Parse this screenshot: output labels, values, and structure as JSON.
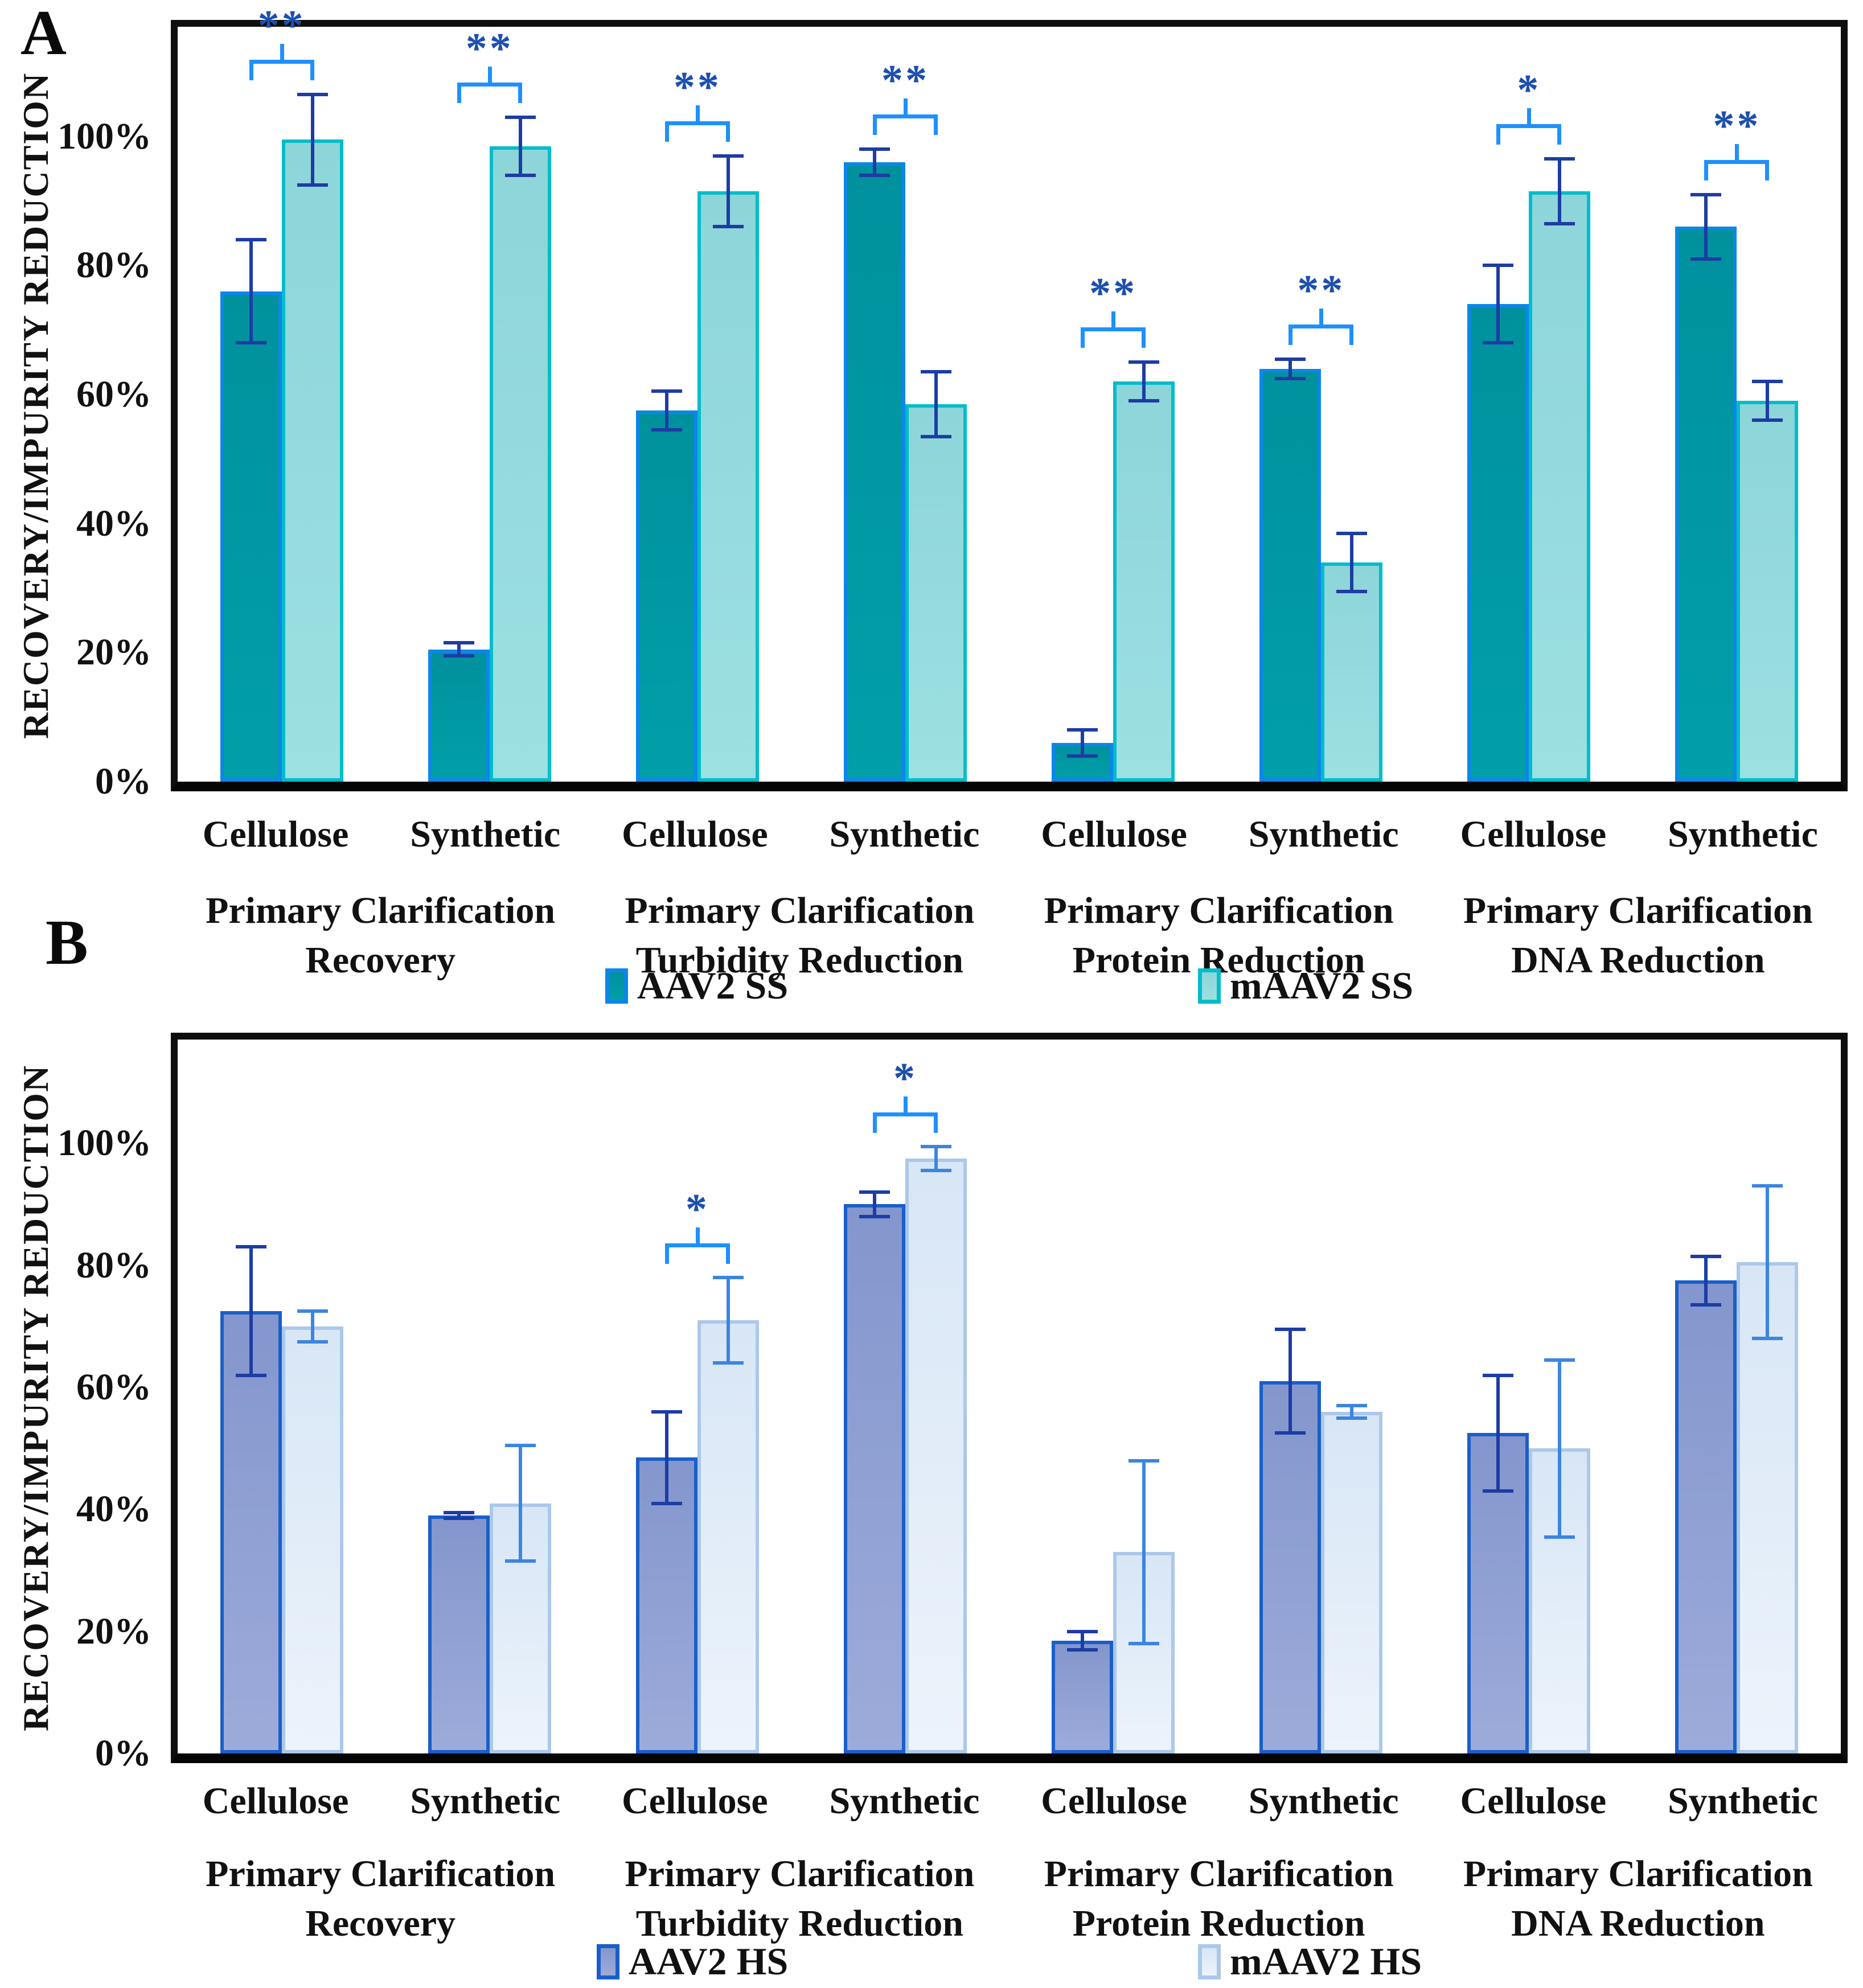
{
  "chart_data": [
    {
      "type": "bar",
      "panel_label": "A",
      "ylabel": "RECOVERY/IMPURITY REDUCTION",
      "y_ticks": [
        "0%",
        "20%",
        "40%",
        "60%",
        "80%",
        "100%"
      ],
      "y_tick_values": [
        0,
        20,
        40,
        60,
        80,
        100
      ],
      "ylim": [
        0,
        117
      ],
      "grid": "off",
      "legend_position": "bottom",
      "categories": [
        "Cellulose",
        "Synthetic",
        "Cellulose",
        "Synthetic",
        "Cellulose",
        "Synthetic",
        "Cellulose",
        "Synthetic"
      ],
      "group_captions": [
        "Primary Clarification Recovery",
        "Primary Clarification Turbidity Reduction",
        "Primary Clarification Protein Reduction",
        "Primary Clarification DNA Reduction"
      ],
      "series": [
        {
          "name": "AAV2 SS",
          "values": [
            76,
            20.5,
            57.5,
            96,
            6,
            64,
            74,
            86
          ],
          "errors": [
            8,
            1,
            3,
            2,
            2,
            1.5,
            6,
            5
          ],
          "fill": "#00919d",
          "fill2": "#019fa9",
          "border": "#0d86ea",
          "err_color": "#1d3ca4"
        },
        {
          "name": "mAAV2 SS",
          "values": [
            99.5,
            98.5,
            91.5,
            58.5,
            62,
            34,
            91.5,
            59
          ],
          "errors": [
            7,
            4.5,
            5.5,
            5,
            3,
            4.5,
            5,
            3
          ],
          "fill": "#8dd5d9",
          "fill2": "#9de0e2",
          "border": "#00bdca",
          "err_color": "#1d3ca4"
        }
      ],
      "significance": [
        "**",
        "**",
        "**",
        "**",
        "**",
        "**",
        "*",
        "**"
      ],
      "colors": {
        "sig_line": "#1e90ff",
        "sig_text": "#1c4fae",
        "frame": "#0e0e0e"
      }
    },
    {
      "type": "bar",
      "panel_label": "B",
      "ylabel": "RECOVERY/IMPURITY REDUCTION",
      "y_ticks": [
        "0%",
        "20%",
        "40%",
        "60%",
        "80%",
        "100%"
      ],
      "y_tick_values": [
        0,
        20,
        40,
        60,
        80,
        100
      ],
      "ylim": [
        0,
        117
      ],
      "grid": "off",
      "legend_position": "bottom",
      "categories": [
        "Cellulose",
        "Synthetic",
        "Cellulose",
        "Synthetic",
        "Cellulose",
        "Synthetic",
        "Cellulose",
        "Synthetic"
      ],
      "group_captions": [
        "Primary Clarification Recovery",
        "Primary Clarification Turbidity Reduction",
        "Primary Clarification Protein Reduction",
        "Primary Clarification DNA Reduction"
      ],
      "series": [
        {
          "name": "AAV2 HS",
          "values": [
            72.5,
            39,
            48.5,
            90,
            18.5,
            61,
            52.5,
            77.5
          ],
          "errors": [
            10.5,
            0.5,
            7.5,
            2,
            1.5,
            8.5,
            9.5,
            4
          ],
          "fill": "#8396cd",
          "fill2": "#9dabda",
          "border": "#1a5ec9",
          "err_color": "#1d3ca4"
        },
        {
          "name": "mAAV2 HS",
          "values": [
            70,
            41,
            71,
            97.5,
            33,
            56,
            50,
            80.5
          ],
          "errors": [
            2.5,
            9.5,
            7,
            2,
            15,
            1,
            14.5,
            12.5
          ],
          "fill": "#d8e6f6",
          "fill2": "#ecf3fb",
          "border": "#abc8ea",
          "err_color": "#3c85e0"
        }
      ],
      "significance": [
        null,
        null,
        "*",
        "*",
        null,
        null,
        null,
        null
      ],
      "colors": {
        "sig_line": "#1e90ff",
        "sig_text": "#1c4fae",
        "frame": "#0e0e0e"
      }
    }
  ]
}
